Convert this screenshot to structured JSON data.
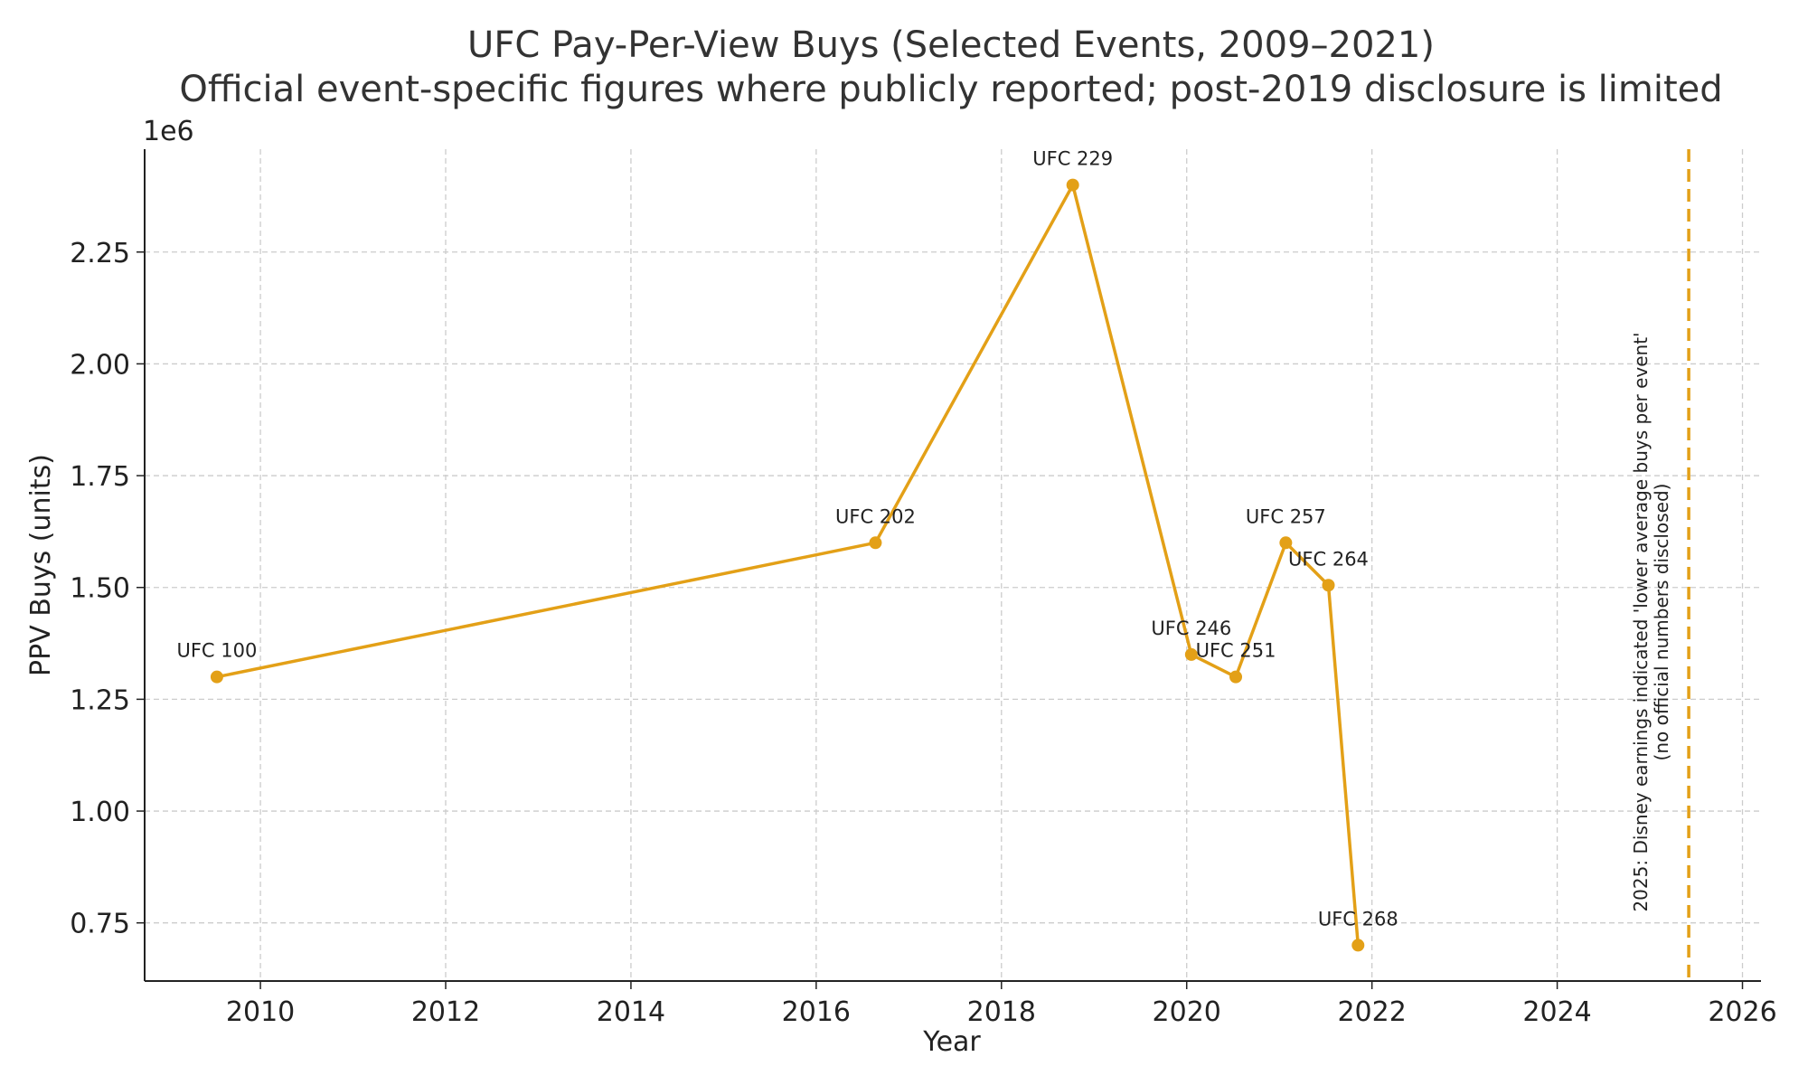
{
  "chart_data": {
    "type": "line",
    "title": "UFC Pay-Per-View Buys (Selected Events, 2009–2021)",
    "subtitle": "Official event-specific figures where publicly reported; post-2019 disclosure is limited",
    "xlabel": "Year",
    "ylabel": "PPV Buys (units)",
    "y_scale_label": "1e6",
    "xlim": [
      2008.75,
      2026.2
    ],
    "ylim": [
      620000,
      2480000
    ],
    "x_ticks": [
      2010,
      2012,
      2014,
      2016,
      2018,
      2020,
      2022,
      2024,
      2026
    ],
    "y_ticks": [
      750000,
      1000000,
      1250000,
      1500000,
      1750000,
      2000000,
      2250000
    ],
    "y_tick_labels": [
      "0.75",
      "1.00",
      "1.25",
      "1.50",
      "1.75",
      "2.00",
      "2.25"
    ],
    "grid": true,
    "line_color": "#E3A017",
    "series": [
      {
        "name": "",
        "points": [
          {
            "label": "UFC 100",
            "x": 2009.53,
            "y": 1300000
          },
          {
            "label": "UFC 202",
            "x": 2016.64,
            "y": 1600000
          },
          {
            "label": "UFC 229",
            "x": 2018.77,
            "y": 2400000
          },
          {
            "label": "UFC 246",
            "x": 2020.05,
            "y": 1350000
          },
          {
            "label": "UFC 251",
            "x": 2020.53,
            "y": 1300000
          },
          {
            "label": "UFC 257",
            "x": 2021.07,
            "y": 1600000
          },
          {
            "label": "UFC 264",
            "x": 2021.53,
            "y": 1505000
          },
          {
            "label": "UFC 268",
            "x": 2021.85,
            "y": 700000
          }
        ]
      }
    ],
    "annotations": [
      {
        "type": "vline",
        "x": 2025.42,
        "lines": [
          "2025: Disney earnings indicated 'lower average buys per event'",
          "(no official numbers disclosed)"
        ]
      }
    ]
  }
}
